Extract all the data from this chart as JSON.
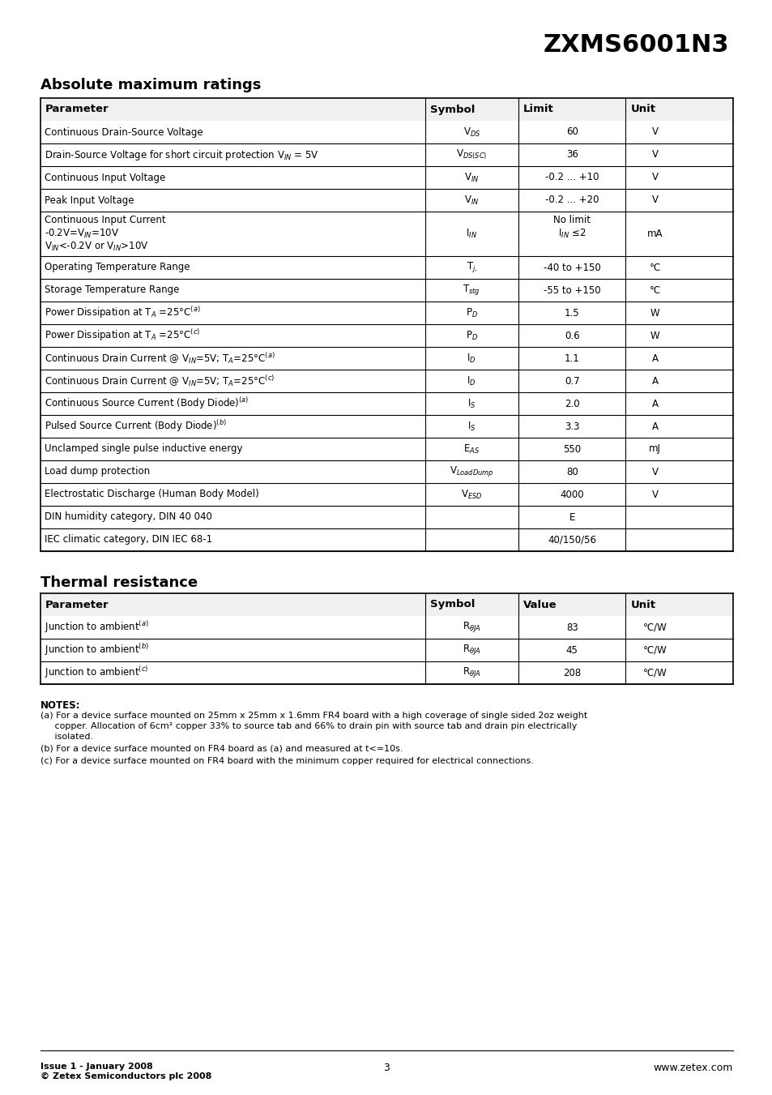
{
  "title": "ZXMS6001N3",
  "section1_title": "Absolute maximum ratings",
  "section2_title": "Thermal resistance",
  "table1_headers": [
    "Parameter",
    "Symbol",
    "Limit",
    "Unit"
  ],
  "table1_rows": [
    [
      "Continuous Drain-Source Voltage",
      "V$_{DS}$",
      "60",
      "V"
    ],
    [
      "Drain-Source Voltage for short circuit protection V$_{IN}$ = 5V",
      "V$_{DS(SC)}$",
      "36",
      "V"
    ],
    [
      "Continuous Input Voltage",
      "V$_{IN}$",
      "-0.2 ... +10",
      "V"
    ],
    [
      "Peak Input Voltage",
      "V$_{IN}$",
      "-0.2 ... +20",
      "V"
    ],
    [
      "Continuous Input Current\n-0.2V=V$_{IN}$=10V\nV$_{IN}$<-0.2V or V$_{IN}$>10V",
      "I$_{IN}$",
      "No limit\nI$_{IN}$ ≤2",
      "mA"
    ],
    [
      "Operating Temperature Range",
      "T$_{j,}$",
      "-40 to +150",
      "°C"
    ],
    [
      "Storage Temperature Range",
      "T$_{stg}$",
      "-55 to +150",
      "°C"
    ],
    [
      "Power Dissipation at T$_{A}$ =25°C$^{(a)}$",
      "P$_{D}$",
      "1.5",
      "W"
    ],
    [
      "Power Dissipation at T$_{A}$ =25°C$^{(c)}$",
      "P$_{D}$",
      "0.6",
      "W"
    ],
    [
      "Continuous Drain Current @ V$_{IN}$=5V; T$_{A}$=25°C$^{(a)}$",
      "I$_{D}$",
      "1.1",
      "A"
    ],
    [
      "Continuous Drain Current @ V$_{IN}$=5V; T$_{A}$=25°C$^{(c)}$",
      "I$_{D}$",
      "0.7",
      "A"
    ],
    [
      "Continuous Source Current (Body Diode)$^{(a)}$",
      "I$_{S}$",
      "2.0",
      "A"
    ],
    [
      "Pulsed Source Current (Body Diode)$^{(b)}$",
      "I$_{S}$",
      "3.3",
      "A"
    ],
    [
      "Unclamped single pulse inductive energy",
      "E$_{AS}$",
      "550",
      "mJ"
    ],
    [
      "Load dump protection",
      "V$_{LoadDump}$",
      "80",
      "V"
    ],
    [
      "Electrostatic Discharge (Human Body Model)",
      "V$_{ESD}$",
      "4000",
      "V"
    ],
    [
      "DIN humidity category, DIN 40 040",
      "",
      "E",
      ""
    ],
    [
      "IEC climatic category, DIN IEC 68-1",
      "",
      "40/150/56",
      ""
    ]
  ],
  "table2_headers": [
    "Parameter",
    "Symbol",
    "Value",
    "Unit"
  ],
  "table2_rows": [
    [
      "Junction to ambient$^{(a)}$",
      "R$_{θJA}$",
      "83",
      "°C/W"
    ],
    [
      "Junction to ambient$^{(b)}$",
      "R$_{θJA}$",
      "45",
      "°C/W"
    ],
    [
      "Junction to ambient$^{(c)}$",
      "R$_{θJA}$",
      "208",
      "°C/W"
    ]
  ],
  "notes_title": "NOTES:",
  "notes": [
    "(a) For a device surface mounted on 25mm x 25mm x 1.6mm FR4 board with a high coverage of single sided 2oz weight\n     copper. Allocation of 6cm² copper 33% to source tab and 66% to drain pin with source tab and drain pin electrically\n     isolated.",
    "(b) For a device surface mounted on FR4 board as (a) and measured at t<=10s.",
    "(c) For a device surface mounted on FR4 board with the minimum copper required for electrical connections."
  ],
  "footer_left": "Issue 1 - January 2008\n© Zetex Semiconductors plc 2008",
  "footer_center": "3",
  "footer_right": "www.zetex.com",
  "bg_color": "#ffffff",
  "text_color": "#000000",
  "header_bg": "#ffffff",
  "line_color": "#000000"
}
